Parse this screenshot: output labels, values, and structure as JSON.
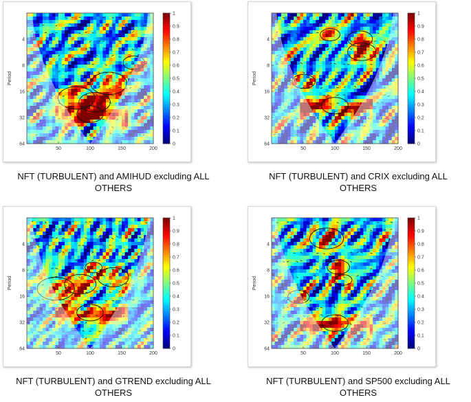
{
  "chart_data": [
    {
      "type": "heatmap",
      "title": "",
      "caption_line1": "NFT (TURBULENT) and AMIHUD excluding ALL",
      "caption_line2": "OTHERS",
      "ylabel": "Period",
      "y_ticks": [
        "4",
        "8",
        "16",
        "32",
        "64"
      ],
      "x_ticks": [
        "50",
        "100",
        "150",
        "200"
      ],
      "xlim": [
        0,
        200
      ],
      "ylim": [
        2,
        64
      ],
      "y_scale": "log2",
      "colorbar_ticks": [
        "0",
        "0.1",
        "0.2",
        "0.3",
        "0.4",
        "0.5",
        "0.6",
        "0.7",
        "0.8",
        "0.9",
        "1"
      ],
      "colorbar_range": [
        0,
        1
      ],
      "colormap": "jet",
      "seed": 11
    },
    {
      "type": "heatmap",
      "title": "",
      "caption_line1": "NFT (TURBULENT) and CRIX excluding ALL",
      "caption_line2": "OTHERS",
      "ylabel": "Period",
      "y_ticks": [
        "4",
        "8",
        "16",
        "32",
        "64"
      ],
      "x_ticks": [
        "50",
        "100",
        "150",
        "200"
      ],
      "xlim": [
        0,
        200
      ],
      "ylim": [
        2,
        64
      ],
      "y_scale": "log2",
      "colorbar_ticks": [
        "0",
        "0.1",
        "0.2",
        "0.3",
        "0.4",
        "0.5",
        "0.6",
        "0.7",
        "0.8",
        "0.9",
        "1"
      ],
      "colorbar_range": [
        0,
        1
      ],
      "colormap": "jet",
      "seed": 23
    },
    {
      "type": "heatmap",
      "title": "",
      "caption_line1": "NFT (TURBULENT) and GTREND excluding ALL",
      "caption_line2": "OTHERS",
      "ylabel": "Period",
      "y_ticks": [
        "4",
        "8",
        "16",
        "32",
        "64"
      ],
      "x_ticks": [
        "50",
        "100",
        "150",
        "200"
      ],
      "xlim": [
        0,
        200
      ],
      "ylim": [
        2,
        64
      ],
      "y_scale": "log2",
      "colorbar_ticks": [
        "0",
        "0.1",
        "0.2",
        "0.3",
        "0.4",
        "0.5",
        "0.6",
        "0.7",
        "0.8",
        "0.9",
        "1"
      ],
      "colorbar_range": [
        0,
        1
      ],
      "colormap": "jet",
      "seed": 37
    },
    {
      "type": "heatmap",
      "title": "",
      "caption_line1": "NFT (TURBULENT) and SP500 excluding ALL",
      "caption_line2": "OTHERS",
      "ylabel": "Period",
      "y_ticks": [
        "4",
        "8",
        "16",
        "32",
        "64"
      ],
      "x_ticks": [
        "50",
        "100",
        "150",
        "200"
      ],
      "xlim": [
        0,
        200
      ],
      "ylim": [
        2,
        64
      ],
      "y_scale": "log2",
      "colorbar_ticks": [
        "0",
        "0.1",
        "0.2",
        "0.3",
        "0.4",
        "0.5",
        "0.6",
        "0.7",
        "0.8",
        "0.9",
        "1"
      ],
      "colorbar_range": [
        0,
        1
      ],
      "colormap": "jet",
      "seed": 53
    }
  ]
}
